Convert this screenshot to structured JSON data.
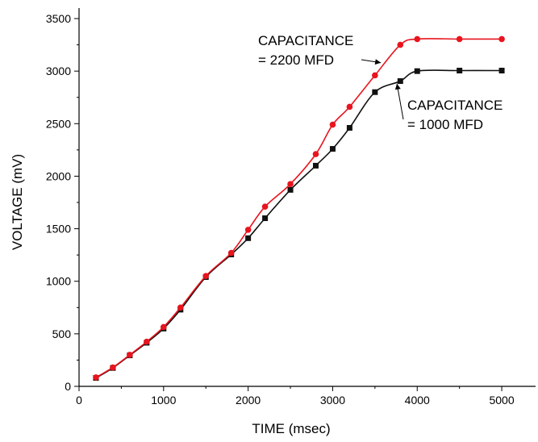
{
  "chart_data": {
    "type": "scatter",
    "xlabel": "TIME (msec)",
    "ylabel": "VOLTAGE (mV)",
    "xlim": [
      0,
      5400
    ],
    "ylim": [
      0,
      3600
    ],
    "xticks": [
      0,
      1000,
      2000,
      3000,
      4000,
      5000
    ],
    "yticks": [
      0,
      500,
      1000,
      1500,
      2000,
      2500,
      3000,
      3500
    ],
    "grid": false,
    "series": [
      {
        "name_lines": [
          "CAPACITANCE",
          "= 2200 MFD"
        ],
        "color": "#e8141e",
        "marker": "circle",
        "x": [
          200,
          400,
          600,
          800,
          1000,
          1200,
          1500,
          1800,
          2000,
          2200,
          2500,
          2800,
          3000,
          3200,
          3500,
          3800,
          4000,
          4500,
          5000
        ],
        "y": [
          85,
          180,
          300,
          425,
          565,
          750,
          1050,
          1270,
          1490,
          1710,
          1925,
          2210,
          2490,
          2660,
          2960,
          3250,
          3305,
          3305,
          3305
        ]
      },
      {
        "name_lines": [
          "CAPACITANCE",
          "= 1000 MFD"
        ],
        "color": "#111111",
        "marker": "square",
        "x": [
          200,
          400,
          600,
          800,
          1000,
          1200,
          1500,
          1800,
          2000,
          2200,
          2500,
          2800,
          3000,
          3200,
          3500,
          3800,
          4000,
          4500,
          5000
        ],
        "y": [
          80,
          175,
          295,
          415,
          550,
          730,
          1040,
          1255,
          1410,
          1600,
          1870,
          2100,
          2260,
          2460,
          2800,
          2905,
          3000,
          3005,
          3005
        ]
      }
    ],
    "annotations": [
      {
        "series": 0,
        "anchor": "upper-left-of-curve",
        "lines": [
          "CAPACITANCE",
          "= 2200 MFD"
        ]
      },
      {
        "series": 1,
        "anchor": "right-of-curve",
        "lines": [
          "CAPACITANCE",
          "= 1000 MFD"
        ]
      }
    ]
  }
}
